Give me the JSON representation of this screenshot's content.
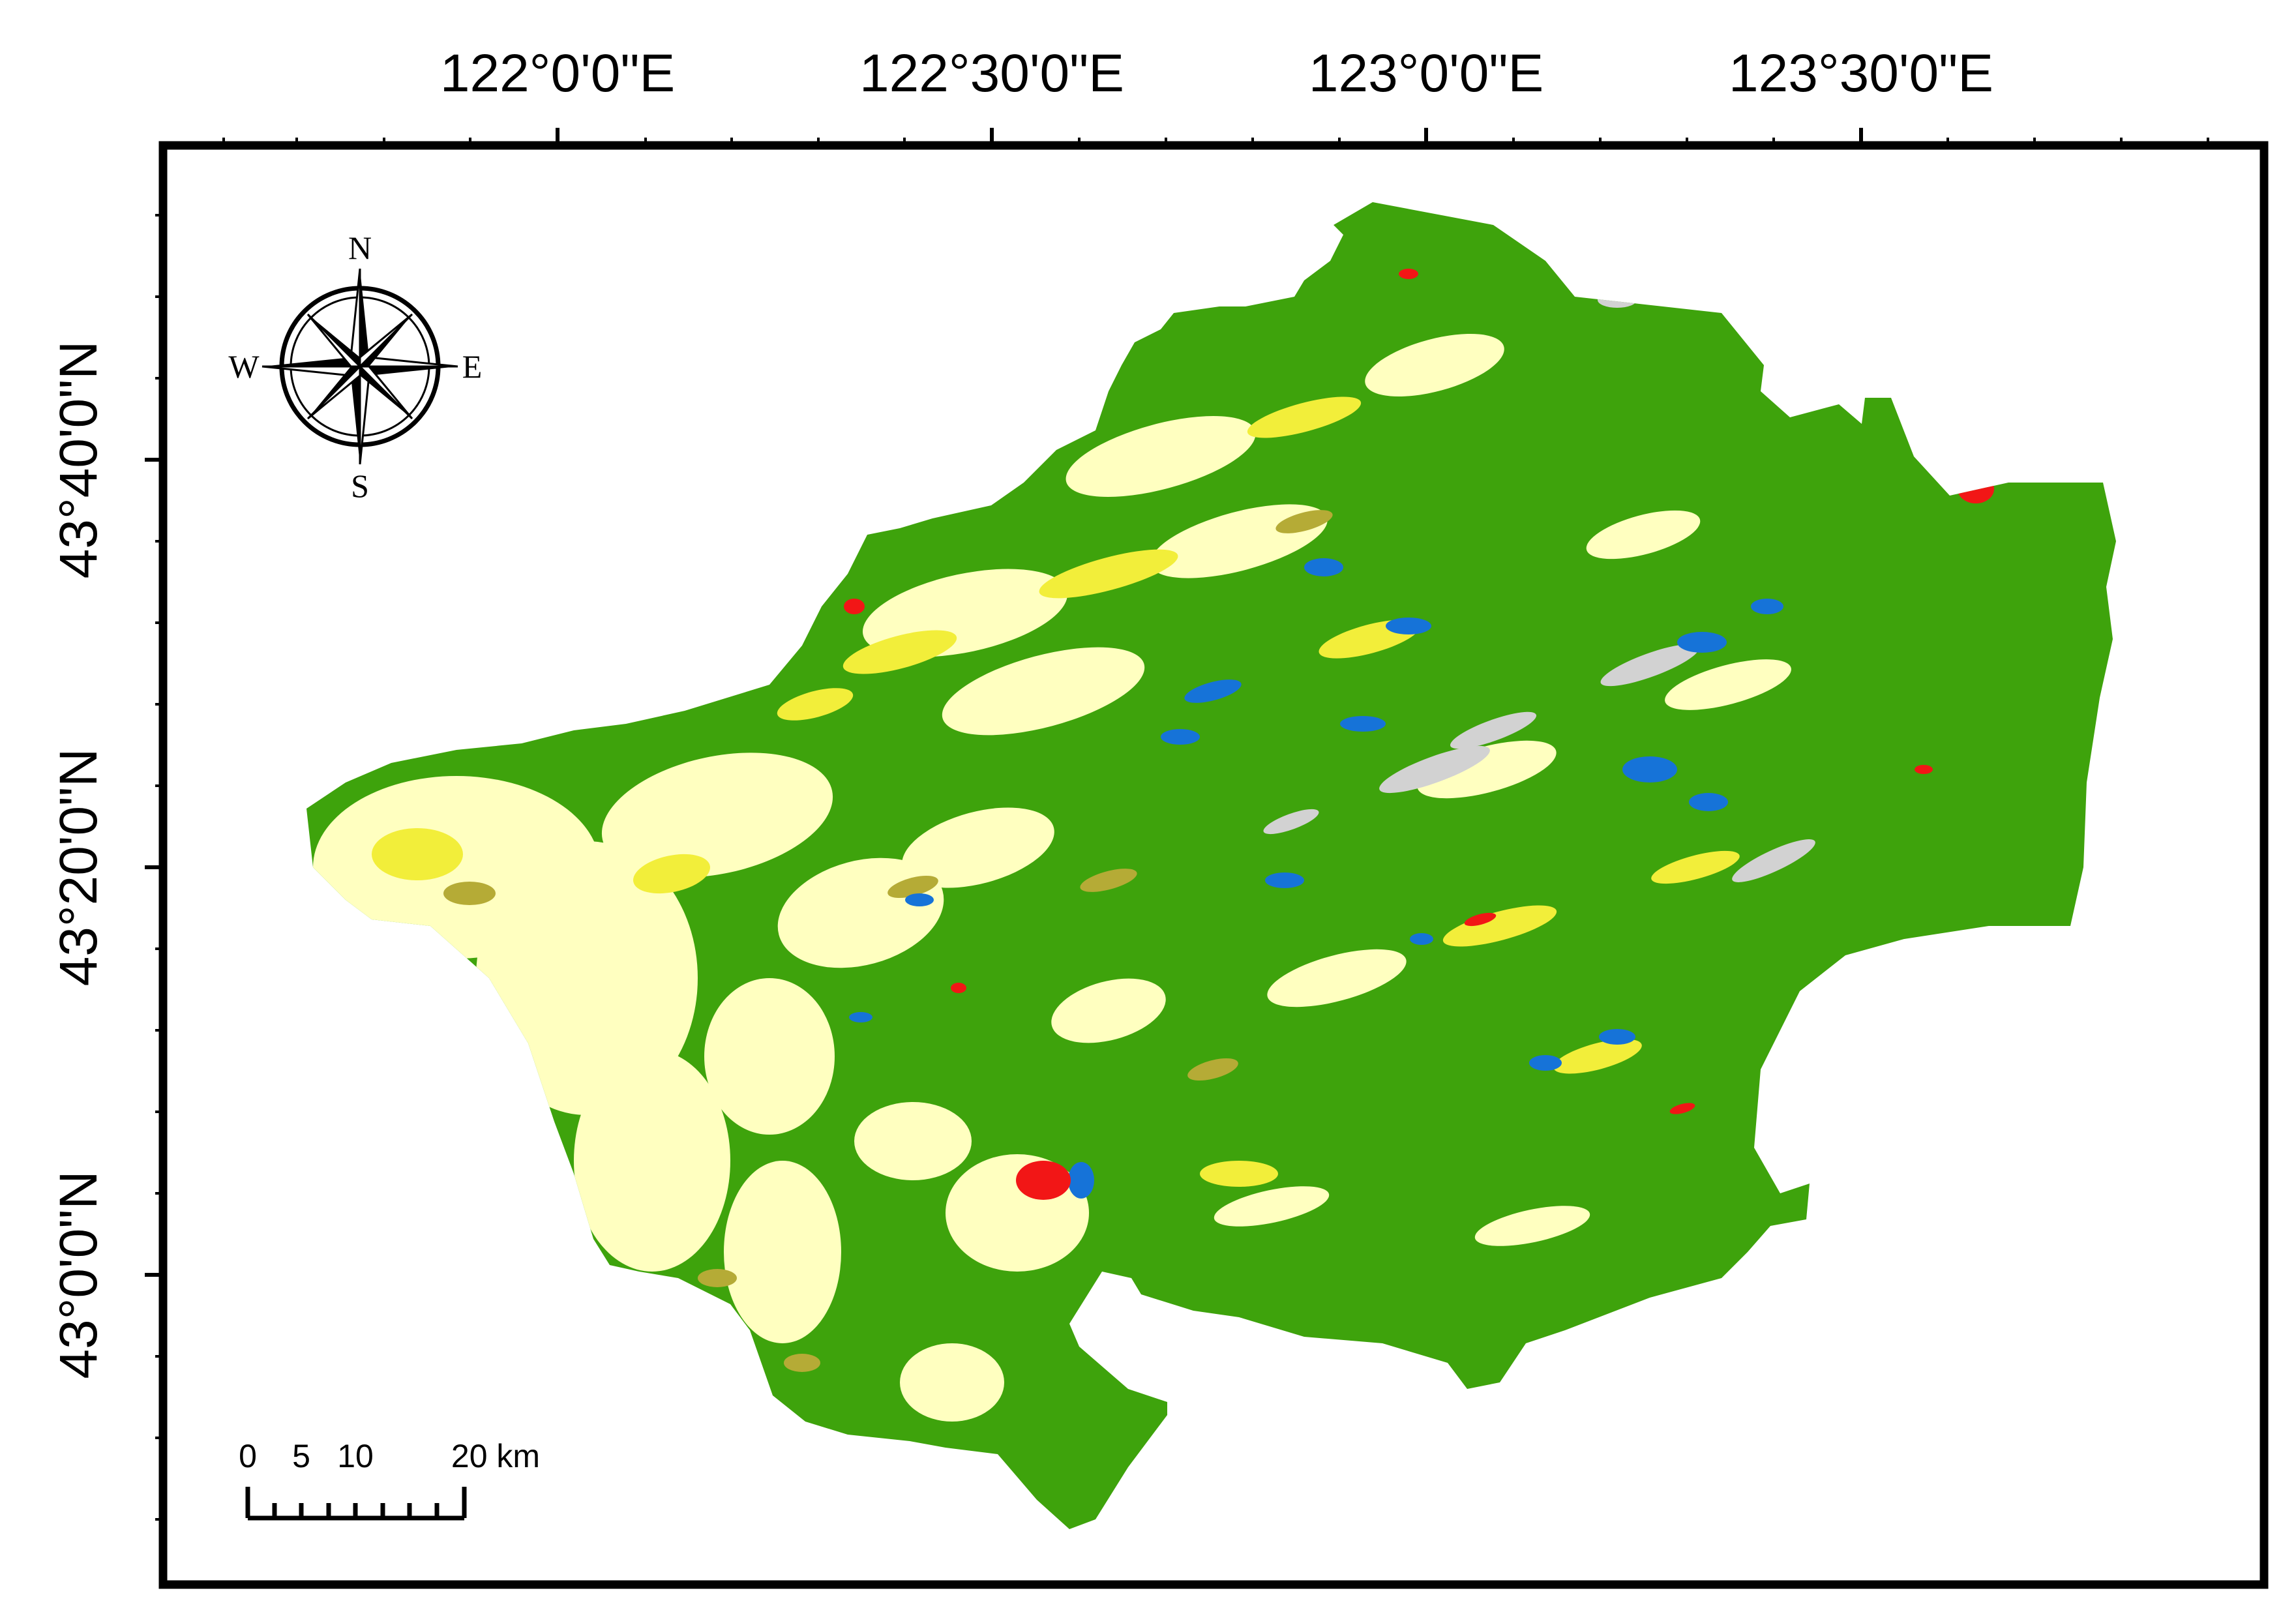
{
  "longitude_labels": [
    "122°0'0\"E",
    "122°30'0\"E",
    "123°0'0\"E",
    "123°30'0\"E"
  ],
  "latitude_labels": [
    "43°40'0\"N",
    "43°20'0\"N",
    "43°0'0\"N"
  ],
  "compass": {
    "north": "N",
    "south": "S",
    "east": "E",
    "west": "W"
  },
  "scale_bar": {
    "labels": [
      "0",
      "5",
      "10",
      "20 km"
    ]
  },
  "land_cover_colors": {
    "grassland": "#3ea30c",
    "cropland_light": "#ffffc0",
    "cropland_yellow": "#f2ee3a",
    "sparse_olive": "#b5ab36",
    "water": "#1673d8",
    "built_up": "#f21616",
    "bare_land": "#d2d2d2"
  }
}
